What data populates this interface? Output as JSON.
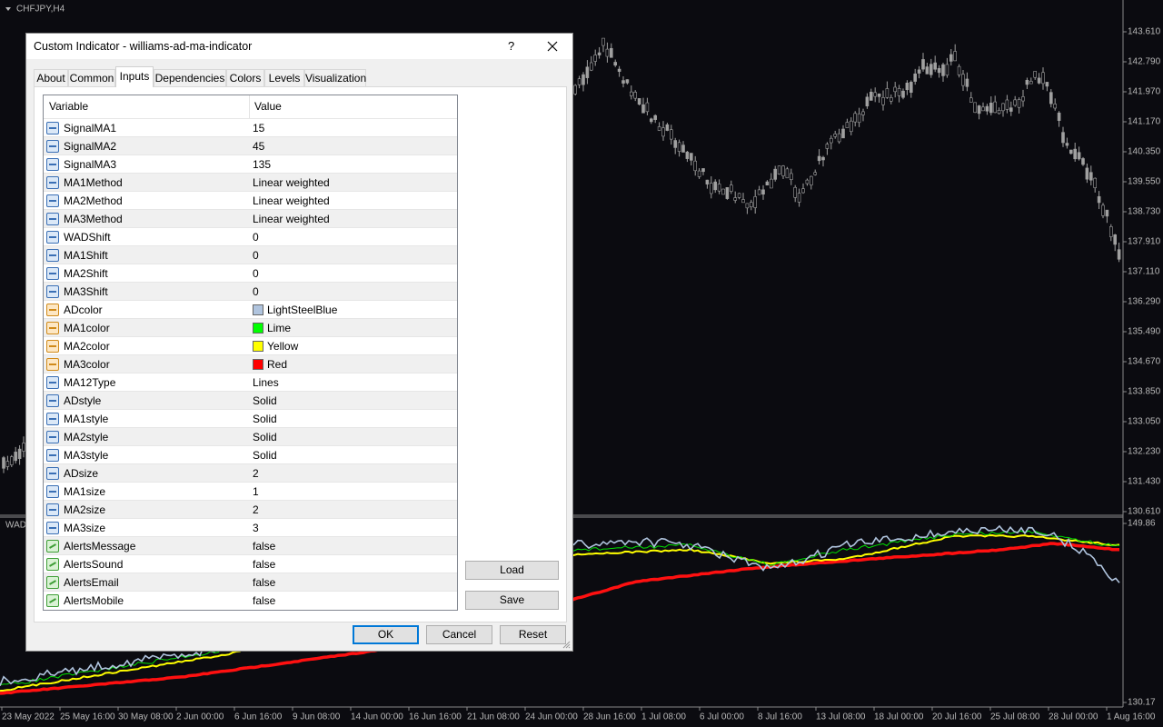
{
  "chart_window": {
    "symbol": "CHFJPY,H4",
    "price_labels": [
      "143.610",
      "142.790",
      "141.970",
      "141.170",
      "140.350",
      "139.550",
      "138.730",
      "137.910",
      "137.110",
      "136.290",
      "135.490",
      "134.670",
      "133.850",
      "133.050",
      "132.230",
      "131.430",
      "130.610"
    ],
    "indicator_name": "WAD",
    "indicator_labels": [
      "149.86",
      "130.17"
    ],
    "date_labels": [
      "23 May 2022",
      "25 May 16:00",
      "30 May 08:00",
      "2 Jun 00:00",
      "6 Jun 16:00",
      "9 Jun 08:00",
      "14 Jun 00:00",
      "16 Jun 16:00",
      "21 Jun 08:00",
      "24 Jun 00:00",
      "28 Jun 16:00",
      "1 Jul 08:00",
      "6 Jul 00:00",
      "8 Jul 16:00",
      "13 Jul 08:00",
      "18 Jul 00:00",
      "20 Jul 16:00",
      "25 Jul 08:00",
      "28 Jul 00:00",
      "1 Aug 16:00"
    ]
  },
  "dialog": {
    "title": "Custom Indicator - williams-ad-ma-indicator",
    "help_button": "?",
    "tabs": [
      "About",
      "Common",
      "Inputs",
      "Dependencies",
      "Colors",
      "Levels",
      "Visualization"
    ],
    "table": {
      "headers": [
        "Variable",
        "Value"
      ],
      "rows": [
        {
          "variable": "SignalMA1",
          "value": 15,
          "icon": "number"
        },
        {
          "variable": "SignalMA2",
          "value": 45,
          "icon": "number"
        },
        {
          "variable": "SignalMA3",
          "value": 135,
          "icon": "number"
        },
        {
          "variable": "MA1Method",
          "value": "Linear weighted",
          "icon": "number"
        },
        {
          "variable": "MA2Method",
          "value": "Linear weighted",
          "icon": "number"
        },
        {
          "variable": "MA3Method",
          "value": "Linear weighted",
          "icon": "number"
        },
        {
          "variable": "WADShift",
          "value": 0,
          "icon": "number"
        },
        {
          "variable": "MA1Shift",
          "value": 0,
          "icon": "number"
        },
        {
          "variable": "MA2Shift",
          "value": 0,
          "icon": "number"
        },
        {
          "variable": "MA3Shift",
          "value": 0,
          "icon": "number"
        },
        {
          "variable": "ADcolor",
          "value": "LightSteelBlue",
          "icon": "color",
          "swatch": "#b0c4de"
        },
        {
          "variable": "MA1color",
          "value": "Lime",
          "icon": "color",
          "swatch": "#00ff00"
        },
        {
          "variable": "MA2color",
          "value": "Yellow",
          "icon": "color",
          "swatch": "#ffff00"
        },
        {
          "variable": "MA3color",
          "value": "Red",
          "icon": "color",
          "swatch": "#ff0000"
        },
        {
          "variable": "MA12Type",
          "value": "Lines",
          "icon": "number"
        },
        {
          "variable": "ADstyle",
          "value": "Solid",
          "icon": "number"
        },
        {
          "variable": "MA1style",
          "value": "Solid",
          "icon": "number"
        },
        {
          "variable": "MA2style",
          "value": "Solid",
          "icon": "number"
        },
        {
          "variable": "MA3style",
          "value": "Solid",
          "icon": "number"
        },
        {
          "variable": "ADsize",
          "value": 2,
          "icon": "number"
        },
        {
          "variable": "MA1size",
          "value": 1,
          "icon": "number"
        },
        {
          "variable": "MA2size",
          "value": 2,
          "icon": "number"
        },
        {
          "variable": "MA3size",
          "value": 3,
          "icon": "number"
        },
        {
          "variable": "AlertsMessage",
          "value": "false",
          "icon": "alert"
        },
        {
          "variable": "AlertsSound",
          "value": "false",
          "icon": "alert"
        },
        {
          "variable": "AlertsEmail",
          "value": "false",
          "icon": "alert"
        },
        {
          "variable": "AlertsMobile",
          "value": "false",
          "icon": "alert"
        }
      ]
    },
    "buttons": {
      "load": "Load",
      "save": "Save",
      "ok": "OK",
      "cancel": "Cancel",
      "reset": "Reset"
    }
  }
}
